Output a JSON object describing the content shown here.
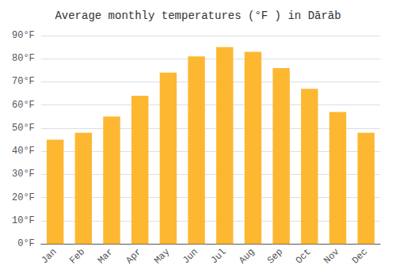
{
  "chart_data": {
    "type": "bar",
    "title": "Average monthly temperatures (°F ) in Dārāb",
    "categories": [
      "Jan",
      "Feb",
      "Mar",
      "Apr",
      "May",
      "Jun",
      "Jul",
      "Aug",
      "Sep",
      "Oct",
      "Nov",
      "Dec"
    ],
    "values": [
      45,
      48,
      55,
      64,
      74,
      81,
      85,
      83,
      76,
      67,
      57,
      48
    ],
    "color": "#FDB731",
    "ylim": [
      0,
      90
    ],
    "yticks": [
      {
        "value": 0,
        "label": "0°F"
      },
      {
        "value": 10,
        "label": "10°F"
      },
      {
        "value": 20,
        "label": "20°F"
      },
      {
        "value": 30,
        "label": "30°F"
      },
      {
        "value": 40,
        "label": "40°F"
      },
      {
        "value": 50,
        "label": "50°F"
      },
      {
        "value": 60,
        "label": "60°F"
      },
      {
        "value": 70,
        "label": "70°F"
      },
      {
        "value": 80,
        "label": "80°F"
      },
      {
        "value": 90,
        "label": "90°F"
      }
    ],
    "grid": true
  }
}
